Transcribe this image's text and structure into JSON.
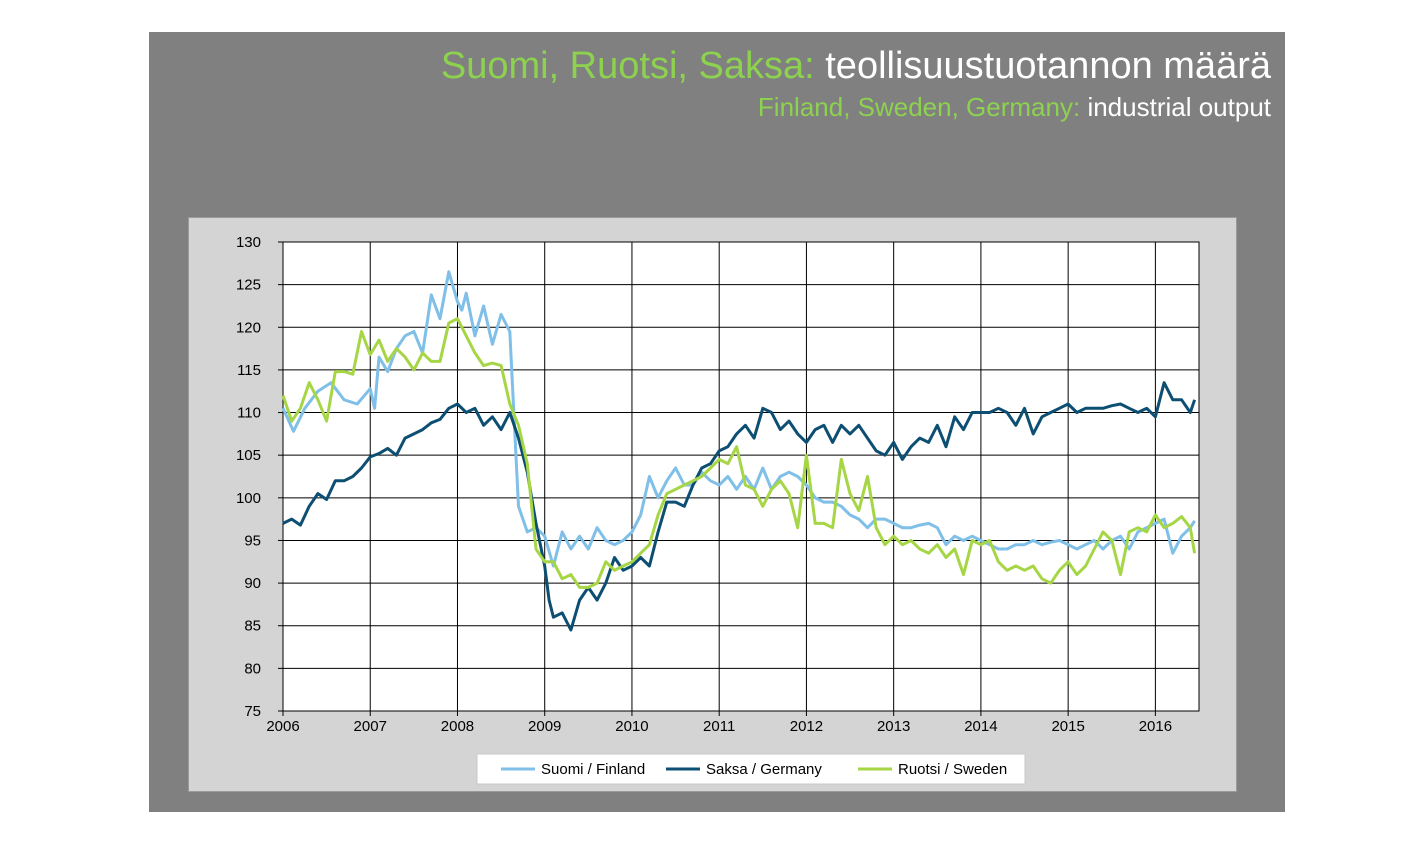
{
  "title": {
    "line1_accent": "Suomi, Ruotsi, Saksa:",
    "line1_rest": "teollisuustuotannon määrä",
    "line2_accent": "Finland, Sweden, Germany:",
    "line2_rest": "industrial output"
  },
  "colors": {
    "background": "#808080",
    "panel": "#d4d4d4",
    "accent_green": "#8dd24f",
    "finland": "#7fbfe8",
    "germany": "#0d4f73",
    "sweden": "#a6d645"
  },
  "chart_data": {
    "type": "line",
    "title": "",
    "xlabel": "",
    "ylabel": "",
    "x_ticks": [
      "2006",
      "2007",
      "2008",
      "2009",
      "2010",
      "2011",
      "2012",
      "2013",
      "2014",
      "2015",
      "2016"
    ],
    "y_ticks": [
      130,
      125,
      120,
      115,
      110,
      105,
      100,
      95,
      90,
      85,
      80,
      75
    ],
    "xlim": [
      2006.0,
      2016.5
    ],
    "ylim": [
      75,
      130
    ],
    "grid": true,
    "legend_position": "bottom",
    "series": [
      {
        "name": "Suomi / Finland",
        "color": "#7fbfe8",
        "x": [
          2006.0,
          2006.12,
          2006.25,
          2006.4,
          2006.55,
          2006.7,
          2006.85,
          2007.0,
          2007.05,
          2007.1,
          2007.2,
          2007.3,
          2007.4,
          2007.5,
          2007.6,
          2007.7,
          2007.8,
          2007.9,
          2008.0,
          2008.05,
          2008.1,
          2008.2,
          2008.3,
          2008.4,
          2008.5,
          2008.6,
          2008.7,
          2008.8,
          2008.9,
          2009.0,
          2009.1,
          2009.2,
          2009.3,
          2009.4,
          2009.5,
          2009.6,
          2009.7,
          2009.8,
          2009.9,
          2010.0,
          2010.1,
          2010.2,
          2010.3,
          2010.4,
          2010.5,
          2010.6,
          2010.7,
          2010.8,
          2010.9,
          2011.0,
          2011.1,
          2011.2,
          2011.3,
          2011.4,
          2011.5,
          2011.6,
          2011.7,
          2011.8,
          2011.9,
          2012.0,
          2012.1,
          2012.2,
          2012.3,
          2012.4,
          2012.5,
          2012.6,
          2012.7,
          2012.8,
          2012.9,
          2013.0,
          2013.1,
          2013.2,
          2013.3,
          2013.4,
          2013.5,
          2013.6,
          2013.7,
          2013.8,
          2013.9,
          2014.0,
          2014.1,
          2014.2,
          2014.3,
          2014.4,
          2014.5,
          2014.6,
          2014.7,
          2014.8,
          2014.9,
          2015.0,
          2015.1,
          2015.2,
          2015.3,
          2015.4,
          2015.5,
          2015.6,
          2015.7,
          2015.8,
          2015.9,
          2016.0,
          2016.1,
          2016.2,
          2016.3,
          2016.4,
          2016.45
        ],
        "values": [
          110.5,
          107.8,
          110.5,
          112.5,
          113.5,
          111.5,
          111.0,
          112.8,
          110.5,
          116.5,
          114.8,
          117.5,
          119.0,
          119.5,
          117.0,
          123.8,
          121.0,
          126.5,
          123.0,
          122.0,
          124.0,
          119.0,
          122.5,
          118.0,
          121.5,
          119.5,
          99.0,
          96.0,
          96.5,
          95.5,
          92.0,
          96.0,
          94.0,
          95.5,
          94.0,
          96.5,
          95.0,
          94.5,
          95.0,
          96.0,
          98.0,
          102.5,
          100.0,
          102.0,
          103.5,
          101.5,
          101.5,
          103.0,
          102.0,
          101.5,
          102.5,
          101.0,
          102.5,
          101.0,
          103.5,
          101.0,
          102.5,
          103.0,
          102.5,
          101.5,
          100.0,
          99.5,
          99.5,
          99.0,
          98.0,
          97.5,
          96.5,
          97.5,
          97.5,
          97.0,
          96.5,
          96.5,
          96.8,
          97.0,
          96.5,
          94.5,
          95.5,
          95.0,
          95.5,
          95.0,
          94.5,
          94.0,
          94.0,
          94.5,
          94.5,
          95.0,
          94.5,
          94.8,
          95.0,
          94.5,
          94.0,
          94.5,
          95.0,
          94.0,
          95.0,
          95.5,
          94.0,
          96.0,
          96.5,
          97.0,
          97.5,
          93.5,
          95.5,
          96.5,
          97.3
        ]
      },
      {
        "name": "Saksa / Germany",
        "color": "#0d4f73",
        "x": [
          2006.0,
          2006.1,
          2006.2,
          2006.3,
          2006.4,
          2006.5,
          2006.6,
          2006.7,
          2006.8,
          2006.9,
          2007.0,
          2007.1,
          2007.2,
          2007.3,
          2007.4,
          2007.5,
          2007.6,
          2007.7,
          2007.8,
          2007.9,
          2008.0,
          2008.1,
          2008.2,
          2008.3,
          2008.4,
          2008.5,
          2008.6,
          2008.7,
          2008.8,
          2008.9,
          2009.0,
          2009.05,
          2009.1,
          2009.2,
          2009.3,
          2009.4,
          2009.5,
          2009.6,
          2009.7,
          2009.8,
          2009.9,
          2010.0,
          2010.1,
          2010.2,
          2010.3,
          2010.4,
          2010.5,
          2010.6,
          2010.7,
          2010.8,
          2010.9,
          2011.0,
          2011.1,
          2011.2,
          2011.3,
          2011.4,
          2011.5,
          2011.6,
          2011.7,
          2011.8,
          2011.9,
          2012.0,
          2012.1,
          2012.2,
          2012.3,
          2012.4,
          2012.5,
          2012.6,
          2012.7,
          2012.8,
          2012.9,
          2013.0,
          2013.1,
          2013.2,
          2013.3,
          2013.4,
          2013.5,
          2013.6,
          2013.7,
          2013.8,
          2013.9,
          2014.0,
          2014.1,
          2014.2,
          2014.3,
          2014.4,
          2014.5,
          2014.6,
          2014.7,
          2014.8,
          2014.9,
          2015.0,
          2015.1,
          2015.2,
          2015.3,
          2015.4,
          2015.5,
          2015.6,
          2015.7,
          2015.8,
          2015.9,
          2016.0,
          2016.1,
          2016.2,
          2016.3,
          2016.4,
          2016.45
        ],
        "values": [
          97.0,
          97.5,
          96.8,
          99.0,
          100.5,
          99.8,
          102.0,
          102.0,
          102.5,
          103.5,
          104.8,
          105.2,
          105.8,
          105.0,
          107.0,
          107.5,
          108.0,
          108.8,
          109.2,
          110.5,
          111.0,
          110.0,
          110.5,
          108.5,
          109.5,
          108.0,
          110.0,
          107.0,
          103.0,
          97.0,
          92.0,
          88.0,
          86.0,
          86.5,
          84.5,
          88.0,
          89.5,
          88.0,
          90.0,
          93.0,
          91.5,
          92.0,
          93.0,
          92.0,
          96.0,
          99.5,
          99.5,
          99.0,
          101.5,
          103.5,
          104.0,
          105.5,
          106.0,
          107.5,
          108.5,
          107.0,
          110.5,
          110.0,
          108.0,
          109.0,
          107.5,
          106.5,
          108.0,
          108.5,
          106.5,
          108.5,
          107.5,
          108.5,
          107.0,
          105.5,
          105.0,
          106.5,
          104.5,
          106.0,
          107.0,
          106.5,
          108.5,
          106.0,
          109.5,
          108.0,
          110.0,
          110.0,
          110.0,
          110.5,
          110.0,
          108.5,
          110.5,
          107.5,
          109.5,
          110.0,
          110.5,
          111.0,
          110.0,
          110.5,
          110.5,
          110.5,
          110.8,
          111.0,
          110.5,
          110.0,
          110.5,
          109.5,
          113.5,
          111.5,
          111.5,
          110.0,
          111.5
        ]
      },
      {
        "name": "Ruotsi / Sweden",
        "color": "#a6d645",
        "x": [
          2006.0,
          2006.1,
          2006.2,
          2006.3,
          2006.4,
          2006.5,
          2006.6,
          2006.7,
          2006.8,
          2006.9,
          2007.0,
          2007.1,
          2007.2,
          2007.3,
          2007.4,
          2007.5,
          2007.6,
          2007.7,
          2007.8,
          2007.9,
          2008.0,
          2008.1,
          2008.2,
          2008.3,
          2008.4,
          2008.5,
          2008.6,
          2008.7,
          2008.8,
          2008.9,
          2009.0,
          2009.1,
          2009.2,
          2009.3,
          2009.4,
          2009.5,
          2009.6,
          2009.7,
          2009.8,
          2009.9,
          2010.0,
          2010.1,
          2010.2,
          2010.3,
          2010.4,
          2010.5,
          2010.6,
          2010.7,
          2010.8,
          2010.9,
          2011.0,
          2011.1,
          2011.2,
          2011.3,
          2011.4,
          2011.5,
          2011.6,
          2011.7,
          2011.8,
          2011.9,
          2012.0,
          2012.1,
          2012.2,
          2012.3,
          2012.4,
          2012.5,
          2012.6,
          2012.7,
          2012.8,
          2012.9,
          2013.0,
          2013.1,
          2013.2,
          2013.3,
          2013.4,
          2013.5,
          2013.6,
          2013.7,
          2013.8,
          2013.9,
          2014.0,
          2014.1,
          2014.2,
          2014.3,
          2014.4,
          2014.5,
          2014.6,
          2014.7,
          2014.8,
          2014.9,
          2015.0,
          2015.1,
          2015.2,
          2015.3,
          2015.4,
          2015.5,
          2015.6,
          2015.7,
          2015.8,
          2015.9,
          2016.0,
          2016.1,
          2016.2,
          2016.3,
          2016.4,
          2016.45
        ],
        "values": [
          112.0,
          109.0,
          110.5,
          113.5,
          111.5,
          109.0,
          114.8,
          114.8,
          114.5,
          119.5,
          116.8,
          118.5,
          116.0,
          117.5,
          116.5,
          115.0,
          117.0,
          116.0,
          116.0,
          120.5,
          121.0,
          119.0,
          117.0,
          115.5,
          115.8,
          115.5,
          111.0,
          108.5,
          104.0,
          94.0,
          92.5,
          92.5,
          90.5,
          91.0,
          89.5,
          89.5,
          90.0,
          92.5,
          91.5,
          92.0,
          92.5,
          93.5,
          94.5,
          98.0,
          100.5,
          101.0,
          101.5,
          102.0,
          102.5,
          103.5,
          104.5,
          104.0,
          106.0,
          101.5,
          101.0,
          99.0,
          101.0,
          102.0,
          100.5,
          96.5,
          105.0,
          97.0,
          97.0,
          96.5,
          104.5,
          100.5,
          98.5,
          102.5,
          96.5,
          94.5,
          95.5,
          94.5,
          95.0,
          94.0,
          93.5,
          94.5,
          93.0,
          94.0,
          91.0,
          95.0,
          94.5,
          95.0,
          92.5,
          91.5,
          92.0,
          91.5,
          92.0,
          90.5,
          90.0,
          91.5,
          92.5,
          91.0,
          92.0,
          94.0,
          96.0,
          95.0,
          91.0,
          96.0,
          96.5,
          96.0,
          98.0,
          96.5,
          97.0,
          97.8,
          96.5,
          93.5
        ]
      }
    ]
  }
}
